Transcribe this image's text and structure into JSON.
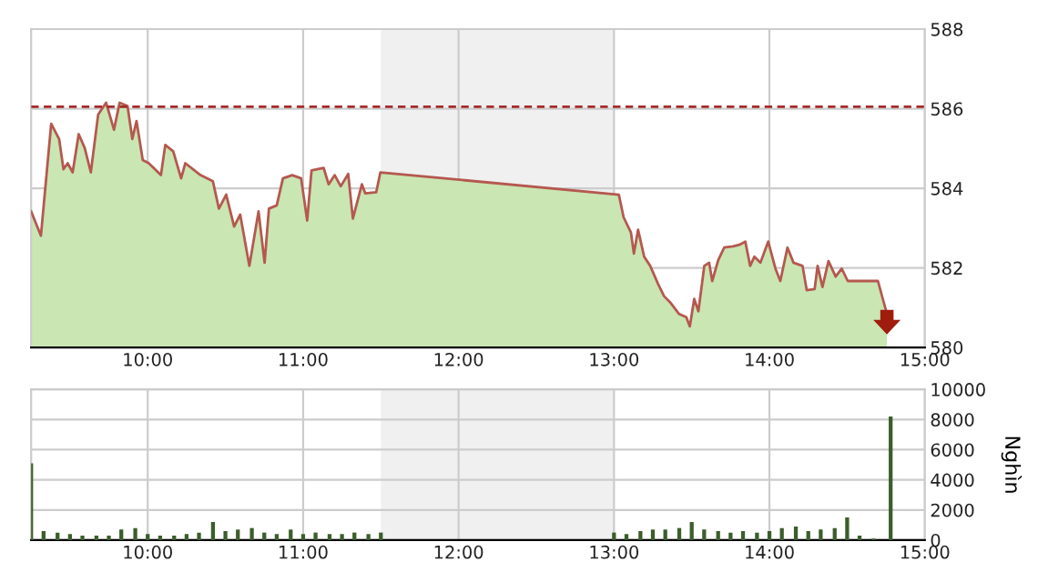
{
  "chart_data": [
    {
      "type": "area",
      "ylim": [
        580,
        588
      ],
      "yticks": [
        580,
        582,
        584,
        586,
        588
      ],
      "xlim": [
        9.25,
        15
      ],
      "xticks": [
        {
          "value": 10,
          "label": "10:00"
        },
        {
          "value": 11,
          "label": "11:00"
        },
        {
          "value": 12,
          "label": "12:00"
        },
        {
          "value": 13,
          "label": "13:00"
        },
        {
          "value": 14,
          "label": "14:00"
        },
        {
          "value": 15,
          "label": "15:00"
        }
      ],
      "grid": true,
      "bands": [
        {
          "axis": "x",
          "from": 11.5,
          "to": 13,
          "color": "#f0f0f0"
        }
      ],
      "ref_lines": [
        {
          "axis": "y",
          "value": 586.05,
          "color": "#a52a2a",
          "line_style": "dashed"
        }
      ],
      "series": [
        {
          "color": "#c9e6b3",
          "x": [
            9.25,
            9.313,
            9.379,
            9.43,
            9.458,
            9.485,
            9.517,
            9.556,
            9.595,
            9.634,
            9.681,
            9.732,
            9.783,
            9.819,
            9.87,
            9.901,
            9.928,
            9.968,
            10.007,
            10.085,
            10.113,
            10.164,
            10.215,
            10.242,
            10.34,
            10.419,
            10.458,
            10.505,
            10.556,
            10.595,
            10.654,
            10.713,
            10.752,
            10.78,
            10.83,
            10.87,
            10.93,
            10.987,
            11.026,
            11.054,
            11.132,
            11.164,
            11.203,
            11.242,
            11.29,
            11.32,
            11.378,
            11.4,
            11.47,
            11.497,
            13.0,
            13.031,
            13.062,
            13.109,
            13.128,
            13.155,
            13.194,
            13.233,
            13.283,
            13.322,
            13.36,
            13.419,
            13.465,
            13.488,
            13.516,
            13.543,
            13.581,
            13.612,
            13.632,
            13.671,
            13.709,
            13.767,
            13.806,
            13.845,
            13.876,
            13.903,
            13.942,
            13.992,
            14.039,
            14.07,
            14.116,
            14.155,
            14.213,
            14.24,
            14.291,
            14.31,
            14.341,
            14.38,
            14.426,
            14.465,
            14.504,
            14.698,
            14.756
          ],
          "values": [
            583.42,
            582.81,
            585.62,
            585.24,
            584.48,
            584.63,
            584.4,
            585.36,
            585.01,
            584.4,
            585.85,
            586.15,
            585.47,
            586.15,
            586.07,
            585.24,
            585.69,
            584.71,
            584.63,
            584.33,
            585.09,
            584.93,
            584.25,
            584.63,
            584.33,
            584.18,
            583.49,
            583.84,
            583.04,
            583.34,
            582.05,
            583.42,
            582.13,
            583.49,
            583.57,
            584.25,
            584.33,
            584.25,
            583.19,
            584.45,
            584.51,
            584.1,
            584.33,
            584.05,
            584.36,
            583.24,
            584.1,
            583.87,
            583.9,
            584.4,
            583.85,
            583.84,
            583.27,
            582.89,
            582.36,
            582.96,
            582.28,
            582.05,
            581.6,
            581.29,
            581.14,
            580.84,
            580.76,
            580.53,
            581.22,
            580.91,
            582.05,
            582.13,
            581.67,
            582.2,
            582.51,
            582.54,
            582.58,
            582.66,
            582.05,
            582.28,
            582.13,
            582.66,
            581.98,
            581.67,
            582.51,
            582.13,
            582.05,
            581.44,
            581.47,
            582.05,
            581.52,
            582.17,
            581.78,
            581.98,
            581.67,
            581.67,
            580.84
          ]
        },
        {
          "type": "line",
          "color": "#b5584f",
          "x": [
            9.25,
            9.313,
            9.379,
            9.43,
            9.458,
            9.485,
            9.517,
            9.556,
            9.595,
            9.634,
            9.681,
            9.732,
            9.783,
            9.819,
            9.87,
            9.901,
            9.928,
            9.968,
            10.007,
            10.085,
            10.113,
            10.164,
            10.215,
            10.242,
            10.34,
            10.419,
            10.458,
            10.505,
            10.556,
            10.595,
            10.654,
            10.713,
            10.752,
            10.78,
            10.83,
            10.87,
            10.93,
            10.987,
            11.026,
            11.054,
            11.132,
            11.164,
            11.203,
            11.242,
            11.29,
            11.32,
            11.378,
            11.4,
            11.47,
            11.497,
            13.0,
            13.031,
            13.062,
            13.109,
            13.128,
            13.155,
            13.194,
            13.233,
            13.283,
            13.322,
            13.36,
            13.419,
            13.465,
            13.488,
            13.516,
            13.543,
            13.581,
            13.612,
            13.632,
            13.671,
            13.709,
            13.767,
            13.806,
            13.845,
            13.876,
            13.903,
            13.942,
            13.992,
            14.039,
            14.07,
            14.116,
            14.155,
            14.213,
            14.24,
            14.291,
            14.31,
            14.341,
            14.38,
            14.426,
            14.465,
            14.504,
            14.698,
            14.756
          ],
          "values": [
            583.42,
            582.81,
            585.62,
            585.24,
            584.48,
            584.63,
            584.4,
            585.36,
            585.01,
            584.4,
            585.85,
            586.15,
            585.47,
            586.15,
            586.07,
            585.24,
            585.69,
            584.71,
            584.63,
            584.33,
            585.09,
            584.93,
            584.25,
            584.63,
            584.33,
            584.18,
            583.49,
            583.84,
            583.04,
            583.34,
            582.05,
            583.42,
            582.13,
            583.49,
            583.57,
            584.25,
            584.33,
            584.25,
            583.19,
            584.45,
            584.51,
            584.1,
            584.33,
            584.05,
            584.36,
            583.24,
            584.1,
            583.87,
            583.9,
            584.4,
            583.85,
            583.84,
            583.27,
            582.89,
            582.36,
            582.96,
            582.28,
            582.05,
            581.6,
            581.29,
            581.14,
            580.84,
            580.76,
            580.53,
            581.22,
            580.91,
            582.05,
            582.13,
            581.67,
            582.2,
            582.51,
            582.54,
            582.58,
            582.66,
            582.05,
            582.28,
            582.13,
            582.66,
            581.98,
            581.67,
            582.51,
            582.13,
            582.05,
            581.44,
            581.47,
            582.05,
            581.52,
            582.17,
            581.78,
            581.98,
            581.67,
            581.67,
            580.84
          ]
        }
      ]
    },
    {
      "type": "bar",
      "ylim": [
        0,
        10000
      ],
      "yticks": [
        0,
        2000,
        4000,
        6000,
        8000,
        10000
      ],
      "xlim": [
        9.25,
        15
      ],
      "xticks": [
        {
          "value": 10,
          "label": "10:00"
        },
        {
          "value": 11,
          "label": "11:00"
        },
        {
          "value": 12,
          "label": "12:00"
        },
        {
          "value": 13,
          "label": "13:00"
        },
        {
          "value": 14,
          "label": "14:00"
        },
        {
          "value": 15,
          "label": "15:00"
        }
      ],
      "ylabel": "Nghìn",
      "grid": true,
      "bands": [
        {
          "axis": "x",
          "from": 11.5,
          "to": 13,
          "color": "#f0f0f0"
        }
      ],
      "series": [
        {
          "color": "#3b5e2b",
          "x": [
            9.25,
            9.33,
            9.42,
            9.5,
            9.58,
            9.67,
            9.75,
            9.83,
            9.92,
            10,
            10.08,
            10.17,
            10.25,
            10.33,
            10.42,
            10.5,
            10.58,
            10.67,
            10.75,
            10.83,
            10.92,
            11,
            11.08,
            11.17,
            11.25,
            11.33,
            11.42,
            11.5,
            13,
            13.08,
            13.17,
            13.25,
            13.33,
            13.42,
            13.5,
            13.58,
            13.67,
            13.75,
            13.83,
            13.92,
            14,
            14.08,
            14.17,
            14.25,
            14.33,
            14.42,
            14.5,
            14.58,
            14.67,
            14.78
          ],
          "values": [
            5100,
            600,
            500,
            400,
            300,
            300,
            300,
            700,
            800,
            400,
            300,
            300,
            400,
            500,
            1200,
            600,
            700,
            800,
            500,
            400,
            700,
            400,
            500,
            400,
            400,
            500,
            400,
            500,
            500,
            400,
            600,
            700,
            700,
            800,
            1200,
            700,
            600,
            500,
            600,
            500,
            600,
            800,
            900,
            600,
            700,
            800,
            1500,
            300,
            100,
            8200
          ]
        }
      ]
    }
  ]
}
